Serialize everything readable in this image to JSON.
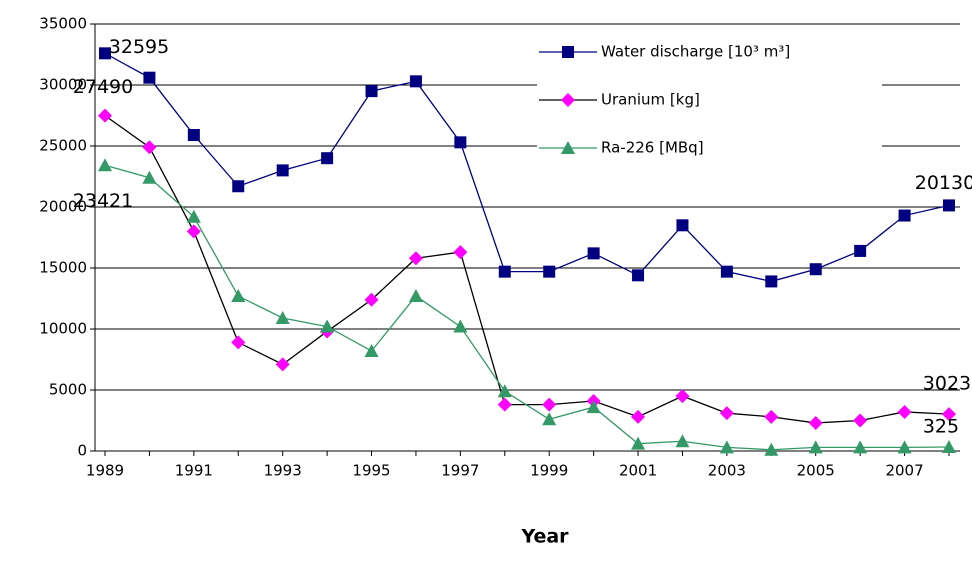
{
  "chart_data": {
    "type": "line",
    "x_title": "Year",
    "categories": [
      "1989",
      null,
      "1991",
      null,
      "1993",
      null,
      "1995",
      null,
      "1997",
      null,
      "1999",
      null,
      "2001",
      null,
      "2003",
      null,
      "2005",
      null,
      "2007",
      null
    ],
    "ylim": [
      0,
      35000
    ],
    "yticks": [
      0,
      5000,
      10000,
      15000,
      20000,
      25000,
      30000,
      35000
    ],
    "grid": true,
    "legend": "top-right",
    "series": [
      {
        "name": "Water discharge [10³ m³]",
        "color": "#000080",
        "line_color": "#000080",
        "marker": "square",
        "values": [
          32595,
          30600,
          25900,
          21700,
          23000,
          24000,
          29500,
          30300,
          25300,
          14700,
          14700,
          16200,
          14400,
          18500,
          14700,
          13900,
          14900,
          16400,
          19300,
          20130
        ],
        "label_points": [
          0,
          19
        ]
      },
      {
        "name": "Uranium [kg]",
        "color": "#ff00ff",
        "line_color": "#000000",
        "marker": "diamond",
        "values": [
          27490,
          24900,
          18000,
          8900,
          7100,
          9800,
          12400,
          15800,
          16300,
          3800,
          3800,
          4100,
          2800,
          4500,
          3100,
          2800,
          2300,
          2500,
          3200,
          3023
        ],
        "label_points": [
          0,
          19
        ]
      },
      {
        "name": "Ra-226 [MBq]",
        "color": "#339966",
        "line_color": "#339966",
        "marker": "triangle",
        "values": [
          23421,
          22400,
          19200,
          12700,
          10900,
          10200,
          8200,
          12700,
          10200,
          4900,
          2600,
          3600,
          600,
          800,
          300,
          100,
          300,
          300,
          300,
          325
        ],
        "label_points": [
          0,
          19
        ]
      }
    ]
  }
}
